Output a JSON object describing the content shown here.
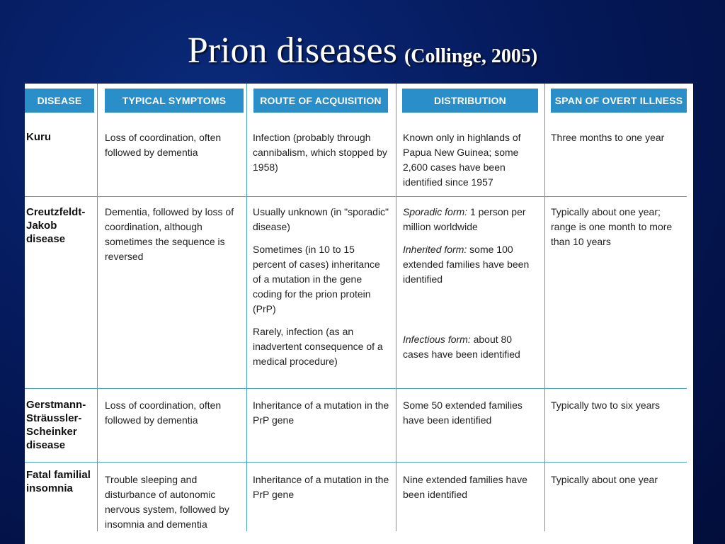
{
  "title": {
    "main": "Prion diseases",
    "citation": "(Collinge, 2005)"
  },
  "headers": {
    "disease": "DISEASE",
    "symptoms": "TYPICAL SYMPTOMS",
    "route": "ROUTE OF ACQUISITION",
    "distribution": "DISTRIBUTION",
    "span": "SPAN OF OVERT ILLNESS"
  },
  "rows": [
    {
      "disease": "Kuru",
      "symptoms": "Loss of coordination, often followed by dementia",
      "route": [
        "Infection (probably through cannibalism, which stopped by 1958)"
      ],
      "distribution": [
        {
          "label": "",
          "text": "Known only in highlands of Papua New Guinea; some 2,600 cases have been identified since 1957"
        }
      ],
      "span": "Three months to one year"
    },
    {
      "disease": "Creutzfeldt-Jakob disease",
      "symptoms": "Dementia, followed by loss of coordination, although sometimes the sequence is reversed",
      "route": [
        "Usually unknown (in \"sporadic\" disease)",
        "Sometimes (in 10 to 15 percent of cases) inheritance of a mutation in the gene coding for the prion protein (PrP)",
        "Rarely, infection (as an inadvertent consequence of a medical procedure)"
      ],
      "distribution": [
        {
          "label": "Sporadic form:",
          "text": "1 person per million worldwide"
        },
        {
          "label": "Inherited form:",
          "text": "some 100 extended families have been identified"
        },
        {
          "label": "Infectious form:",
          "text": "about 80 cases have been identified"
        }
      ],
      "span": "Typically about one year; range is one month to more than 10 years"
    },
    {
      "disease": "Gerstmann-Sträussler-Scheinker disease",
      "symptoms": "Loss of coordination, often followed by dementia",
      "route": [
        "Inheritance of a mutation in the PrP gene"
      ],
      "distribution": [
        {
          "label": "",
          "text": "Some 50 extended families have been identified"
        }
      ],
      "span": "Typically two to six years"
    },
    {
      "disease": "Fatal familial insomnia",
      "symptoms": "Trouble sleeping and disturbance of autonomic nervous system, followed by insomnia and dementia",
      "route": [
        "Inheritance of a mutation in the PrP gene"
      ],
      "distribution": [
        {
          "label": "",
          "text": "Nine extended families have been identified"
        }
      ],
      "span": "Typically about one year"
    }
  ]
}
